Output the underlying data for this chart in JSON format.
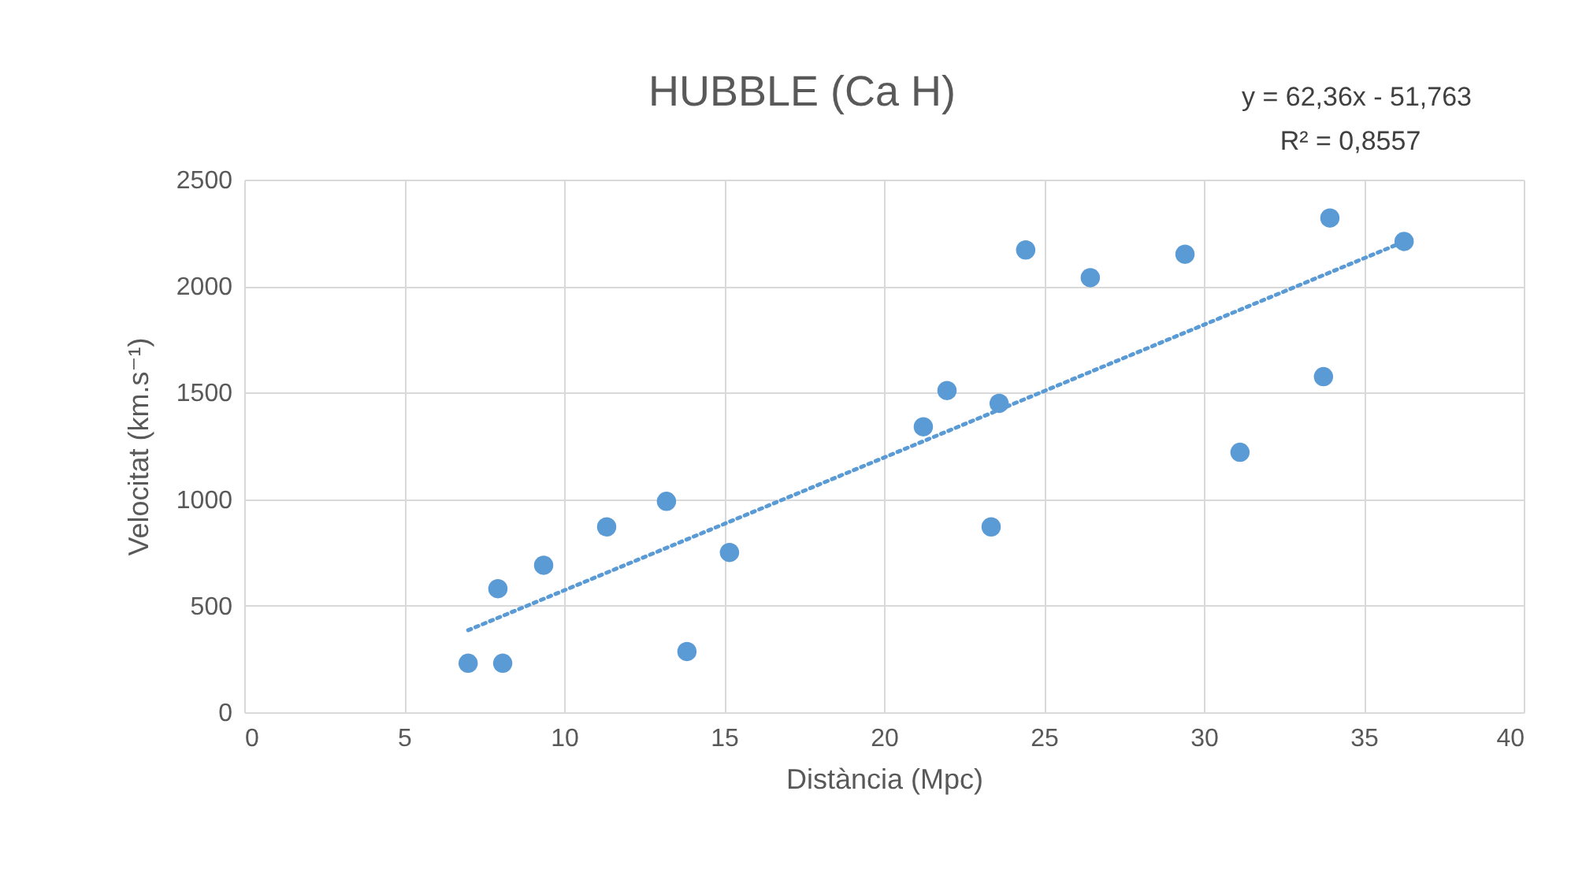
{
  "chart_data": {
    "type": "scatter",
    "title": "HUBBLE (Ca H)",
    "xlabel": "Distància (Mpc)",
    "ylabel": "Velocitat (km.s⁻¹)",
    "series": [
      {
        "color": "#5b9bd5",
        "marker": "circle",
        "x": [
          7.0,
          7.93,
          8.08,
          9.36,
          11.33,
          13.2,
          13.84,
          15.17,
          21.23,
          21.97,
          23.35,
          23.6,
          24.43,
          26.45,
          29.41,
          31.13,
          33.74,
          33.94,
          36.26
        ],
        "values": [
          230,
          580,
          230,
          690,
          870,
          990,
          285,
          750,
          1340,
          1510,
          870,
          1450,
          2170,
          2040,
          2150,
          1220,
          1575,
          2320,
          2210
        ]
      },
      {
        "type": "line",
        "color": "#5b9bd5",
        "marker": "none",
        "line_style": "dotted",
        "x": [
          7.0,
          36.26
        ],
        "values": [
          385,
          2209
        ]
      }
    ],
    "xlim": [
      0,
      40
    ],
    "xticks": [
      0,
      5,
      10,
      15,
      20,
      25,
      30,
      35,
      40
    ],
    "ylim": [
      0,
      2500
    ],
    "yticks": [
      0,
      500,
      1000,
      1500,
      2000,
      2500
    ],
    "grid": true,
    "annotations": [
      "y = 62,36x - 51,763",
      "R² = 0,8557"
    ]
  }
}
